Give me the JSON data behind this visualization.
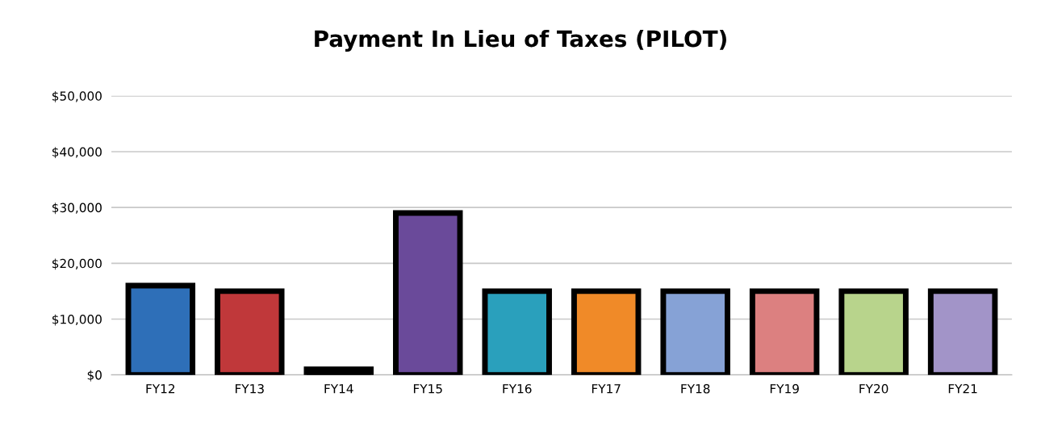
{
  "chart_data": {
    "type": "bar",
    "title": "Payment In Lieu of Taxes (PILOT)",
    "categories": [
      "FY12",
      "FY13",
      "FY14",
      "FY15",
      "FY16",
      "FY17",
      "FY18",
      "FY19",
      "FY20",
      "FY21"
    ],
    "values": [
      16000,
      15000,
      1000,
      29000,
      15000,
      15000,
      15000,
      15000,
      15000,
      15000
    ],
    "colors": [
      "#2e6fb8",
      "#c0383a",
      "#2b2b2b",
      "#6a4a9a",
      "#2aa0bc",
      "#f08a28",
      "#86a2d6",
      "#dc8080",
      "#b8d48c",
      "#a294c8"
    ],
    "ylim": [
      0,
      50000
    ],
    "yticks": [
      {
        "value": 0,
        "label": "$0"
      },
      {
        "value": 10000,
        "label": "$10,000"
      },
      {
        "value": 20000,
        "label": "$20,000"
      },
      {
        "value": 30000,
        "label": "$30,000"
      },
      {
        "value": 40000,
        "label": "$40,000"
      },
      {
        "value": 50000,
        "label": "$50,000"
      }
    ],
    "grid": "y"
  }
}
